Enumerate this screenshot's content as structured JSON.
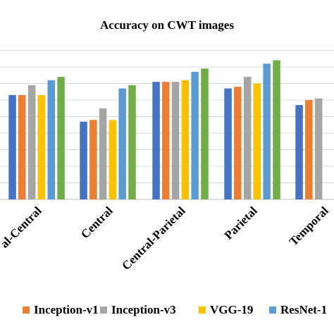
{
  "chart_data": {
    "type": "bar",
    "title": "Accuracy on CWT images",
    "xlabel": "",
    "ylabel": "",
    "ylim": [
      0,
      100
    ],
    "gridlines": true,
    "legend_position": "bottom",
    "categories": [
      "Frontal-Central",
      "Central",
      "Central-Parietal",
      "Parietal",
      "Temporal"
    ],
    "category_labels_visible": [
      "al-Central",
      "Central",
      "Central-Parietal",
      "Parietal",
      "Temporal"
    ],
    "series": [
      {
        "name": "",
        "color": "#4472C4",
        "values": [
          63,
          47,
          71,
          67,
          57
        ]
      },
      {
        "name": "Inception-v1",
        "color": "#ED7D31",
        "values": [
          63,
          48,
          71,
          68,
          60
        ]
      },
      {
        "name": "Inception-v3",
        "color": "#A5A5A5",
        "values": [
          69,
          55,
          71,
          74,
          61
        ]
      },
      {
        "name": "VGG-19",
        "color": "#FFC000",
        "values": [
          63,
          48,
          72,
          70,
          null
        ]
      },
      {
        "name": "ResNet-1",
        "color": "#5B9BD5",
        "values": [
          72,
          67,
          77,
          82,
          null
        ]
      },
      {
        "name": "",
        "color": "#70AD47",
        "values": [
          74,
          69,
          79,
          84,
          null
        ]
      }
    ]
  }
}
